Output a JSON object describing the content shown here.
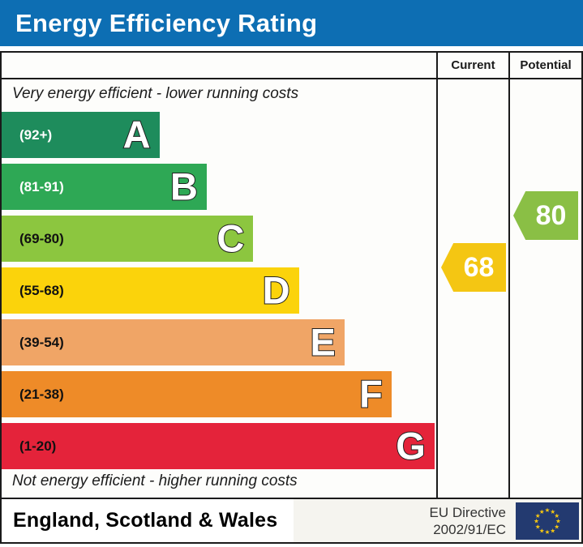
{
  "title": "Energy Efficiency Rating",
  "colors": {
    "header-bg": "#0d6eb3",
    "border": "#1a1a1a",
    "footer-panel": "#f5f4ef",
    "flag-bg": "#233a70",
    "flag-star": "#f8c810"
  },
  "columns": {
    "current": "Current",
    "potential": "Potential"
  },
  "scale": {
    "top_note": "Very energy efficient - lower running costs",
    "bottom_note": "Not energy efficient - higher running costs",
    "bands": [
      {
        "letter": "A",
        "range": "(92+)",
        "color": "#1e8c5c",
        "width_pct": 36.3,
        "label_color": "#ffffff"
      },
      {
        "letter": "B",
        "range": "(81-91)",
        "color": "#2ea855",
        "width_pct": 47.2,
        "label_color": "#ffffff"
      },
      {
        "letter": "C",
        "range": "(69-80)",
        "color": "#8cc63f",
        "width_pct": 57.9,
        "label_color": "#111111"
      },
      {
        "letter": "D",
        "range": "(55-68)",
        "color": "#fbd30b",
        "width_pct": 68.4,
        "label_color": "#111111"
      },
      {
        "letter": "E",
        "range": "(39-54)",
        "color": "#f0a566",
        "width_pct": 78.9,
        "label_color": "#111111"
      },
      {
        "letter": "F",
        "range": "(21-38)",
        "color": "#ee8b28",
        "width_pct": 89.7,
        "label_color": "#111111"
      },
      {
        "letter": "G",
        "range": "(1-20)",
        "color": "#e4233a",
        "width_pct": 99.6,
        "label_color": "#111111"
      }
    ]
  },
  "ratings": {
    "current": {
      "value": "68",
      "band": "D",
      "color": "#f4c613"
    },
    "potential": {
      "value": "80",
      "band": "C",
      "color": "#8abf45"
    }
  },
  "footer": {
    "region": "England, Scotland & Wales",
    "directive_line1": "EU Directive",
    "directive_line2": "2002/91/EC"
  },
  "chart_data": {
    "type": "bar",
    "orientation": "horizontal",
    "title": "Energy Efficiency Rating",
    "categories": [
      "A",
      "B",
      "C",
      "D",
      "E",
      "F",
      "G"
    ],
    "category_ranges": [
      "92+",
      "81-91",
      "69-80",
      "55-68",
      "39-54",
      "21-38",
      "1-20"
    ],
    "bar_lengths_pct_of_chart_width": [
      36.3,
      47.2,
      57.9,
      68.4,
      78.9,
      89.7,
      99.6
    ],
    "bar_colors": [
      "#1e8c5c",
      "#2ea855",
      "#8cc63f",
      "#fbd30b",
      "#f0a566",
      "#ee8b28",
      "#e4233a"
    ],
    "series": [
      {
        "name": "Current",
        "value": 68,
        "band": "D",
        "marker_color": "#f4c613"
      },
      {
        "name": "Potential",
        "value": 80,
        "band": "C",
        "marker_color": "#8abf45"
      }
    ],
    "annotations": [
      "Very energy efficient - lower running costs",
      "Not energy efficient - higher running costs"
    ],
    "legend_position": "none",
    "grid": false,
    "footnote": "England, Scotland & Wales | EU Directive 2002/91/EC"
  }
}
